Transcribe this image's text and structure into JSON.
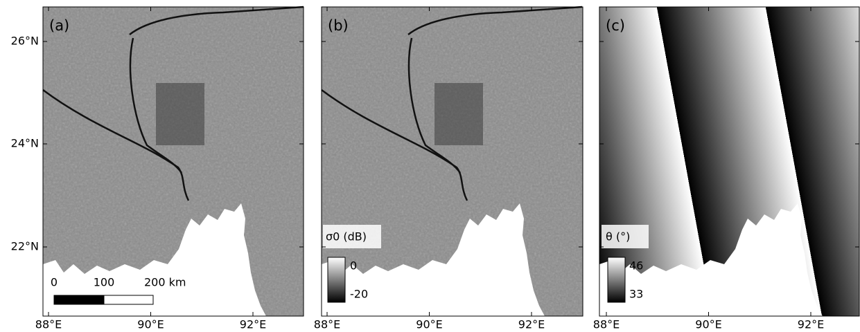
{
  "x_ticks": [
    "88°E",
    "90°E",
    "92°E"
  ],
  "y_ticks": [
    "22°N",
    "24°N",
    "26°N"
  ],
  "panels": [
    {
      "label": "(a)"
    },
    {
      "label": "(b)",
      "colorbar": {
        "title": "σ0 (dB)",
        "top": "0",
        "bottom": "-20"
      }
    },
    {
      "label": "(c)",
      "colorbar": {
        "title": "θ (°)",
        "top": "46",
        "bottom": "33"
      }
    }
  ],
  "scale_bar": {
    "labels": [
      "0",
      "100",
      "200 km"
    ]
  }
}
